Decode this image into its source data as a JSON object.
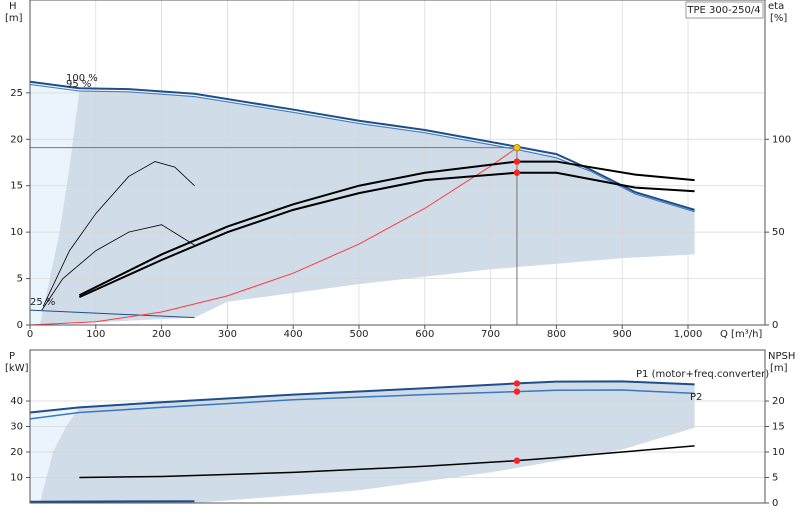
{
  "chart_data": [
    {
      "type": "line",
      "title": "TPE 300-250/4",
      "y_label": "H",
      "y_unit": "[m]",
      "y2_label": "eta",
      "y2_unit": "[%]",
      "x_label": "Q [m³/h]",
      "xlim": [
        0,
        1117
      ],
      "xticks": [
        0,
        100,
        200,
        300,
        400,
        500,
        600,
        700,
        800,
        900,
        {
          "value": 1000,
          "label": "1,000"
        }
      ],
      "ylim": [
        0,
        35
      ],
      "yticks": [
        0,
        5,
        10,
        15,
        20,
        25
      ],
      "y2lim": [
        0,
        175
      ],
      "y2ticks": [
        0,
        50,
        100
      ],
      "grid": true,
      "regions": [
        {
          "color": "#eaf4fc",
          "x": [
            0,
            0,
            75,
            60,
            45,
            30,
            15
          ],
          "y": [
            0,
            26.2,
            25.5,
            17,
            10,
            5,
            0
          ]
        },
        {
          "color": "#d0dce8",
          "x": [
            15,
            30,
            45,
            60,
            75,
            150,
            250,
            400,
            500,
            600,
            740,
            800,
            900,
            1010,
            1010,
            900,
            700,
            500,
            300,
            250,
            100
          ],
          "y": [
            0,
            5,
            10,
            17,
            25.3,
            25.2,
            24.7,
            23,
            21.8,
            20.8,
            19,
            18.2,
            14.8,
            12.3,
            7.6,
            7.2,
            6,
            4.4,
            2.5,
            0.8,
            0.3
          ]
        }
      ],
      "series": [
        {
          "name": "100 %",
          "color": "#1f4e8c",
          "width": 2,
          "x": [
            0,
            75,
            150,
            250,
            400,
            500,
            600,
            740,
            800,
            850,
            920,
            1010
          ],
          "values": [
            26.2,
            25.5,
            25.4,
            24.9,
            23.2,
            22.0,
            21.0,
            19.2,
            18.4,
            16.8,
            14.3,
            12.4
          ]
        },
        {
          "name": "95 %",
          "color": "#3a78c0",
          "width": 1,
          "x": [
            0,
            75,
            150,
            250,
            400,
            500,
            600,
            740,
            800,
            850,
            920,
            1010
          ],
          "values": [
            25.9,
            25.2,
            25.1,
            24.6,
            22.9,
            21.7,
            20.7,
            18.9,
            18.0,
            16.6,
            14.1,
            12.2
          ]
        },
        {
          "name": "25 %",
          "color": "#1f4e8c",
          "width": 1,
          "x": [
            0,
            250
          ],
          "values": [
            1.6,
            0.8
          ]
        },
        {
          "color": "#ff3b3b",
          "width": 1,
          "x": [
            0,
            100,
            200,
            300,
            400,
            500,
            600,
            700,
            740
          ],
          "values": [
            0,
            0.35,
            1.4,
            3.14,
            5.58,
            8.72,
            12.56,
            17.1,
            19.1
          ]
        },
        {
          "color": "#000000",
          "width": 2,
          "axis": "y2",
          "x": [
            75,
            200,
            300,
            400,
            500,
            600,
            740,
            800,
            920,
            1010
          ],
          "values": [
            16,
            38,
            53,
            65,
            75,
            82,
            88,
            88,
            81,
            78
          ]
        },
        {
          "color": "#000000",
          "width": 2,
          "axis": "y2",
          "x": [
            75,
            200,
            300,
            400,
            500,
            600,
            740,
            800,
            920,
            1010
          ],
          "values": [
            15,
            35,
            50,
            62,
            71,
            78,
            82,
            82,
            74,
            72
          ]
        },
        {
          "color": "#000000",
          "width": 0.8,
          "axis": "y2",
          "x": [
            20,
            60,
            100,
            150,
            190,
            220,
            250
          ],
          "values": [
            10,
            40,
            60,
            80,
            88,
            85,
            75
          ]
        },
        {
          "color": "#000000",
          "width": 0.8,
          "axis": "y2",
          "x": [
            18,
            50,
            100,
            150,
            200,
            250
          ],
          "values": [
            8,
            25,
            40,
            50,
            54,
            43
          ]
        }
      ],
      "points": [
        {
          "x": 740,
          "y": 19.1,
          "color": "#f5c518",
          "crosshair": true
        },
        {
          "x": 740,
          "y": 88,
          "axis": "y2",
          "color": "#ff2020"
        },
        {
          "x": 740,
          "y": 82,
          "axis": "y2",
          "color": "#ff2020"
        }
      ]
    },
    {
      "type": "line",
      "y_label": "P",
      "y_unit": "[kW]",
      "y2_label": "NPSH",
      "y2_unit": "[m]",
      "xlim": [
        0,
        1117
      ],
      "ylim": [
        0,
        60
      ],
      "yticks": [
        10,
        20,
        30,
        40
      ],
      "y2lim": [
        0,
        30
      ],
      "y2ticks": [
        0,
        5,
        10,
        15,
        20
      ],
      "grid": true,
      "regions": [
        {
          "color": "#eaf4fc",
          "x": [
            0,
            0,
            75,
            55,
            35,
            15
          ],
          "y": [
            0,
            35.5,
            37.5,
            30,
            20,
            0
          ]
        },
        {
          "color": "#d0dce8",
          "x": [
            15,
            35,
            55,
            75,
            200,
            400,
            600,
            740,
            900,
            1010,
            1010,
            900,
            700,
            500,
            300,
            250
          ],
          "y": [
            0,
            20,
            30,
            37.5,
            39.5,
            42.5,
            45,
            46.9,
            47.7,
            46.5,
            29.5,
            21,
            12,
            5,
            1,
            0
          ]
        }
      ],
      "series": [
        {
          "name": "P1 (motor+freq.converter)",
          "color": "#1f4e8c",
          "width": 2,
          "x": [
            0,
            75,
            200,
            400,
            600,
            740,
            800,
            900,
            1010
          ],
          "values": [
            35.5,
            37.5,
            39.5,
            42.5,
            45,
            46.9,
            47.6,
            47.7,
            46.5
          ]
        },
        {
          "name": "P2",
          "color": "#3a78c0",
          "width": 1.5,
          "x": [
            0,
            75,
            200,
            400,
            600,
            740,
            800,
            900,
            1010
          ],
          "values": [
            33,
            35.5,
            37.5,
            40.5,
            42.5,
            43.7,
            44.2,
            44.3,
            43
          ]
        },
        {
          "color": "#1f4e8c",
          "width": 2,
          "x": [
            0,
            250
          ],
          "values": [
            0.5,
            0.7
          ]
        },
        {
          "color": "#000000",
          "width": 1.5,
          "axis": "y2",
          "x": [
            75,
            200,
            400,
            600,
            740,
            800,
            900,
            1010
          ],
          "values": [
            5,
            5.2,
            6,
            7.2,
            8.3,
            8.9,
            10,
            11.2
          ]
        }
      ],
      "points": [
        {
          "x": 740,
          "y": 46.9,
          "color": "#ff2020"
        },
        {
          "x": 740,
          "y": 43.7,
          "color": "#ff2020"
        },
        {
          "x": 740,
          "y": 8.3,
          "axis": "y2",
          "color": "#ff2020"
        }
      ]
    }
  ]
}
